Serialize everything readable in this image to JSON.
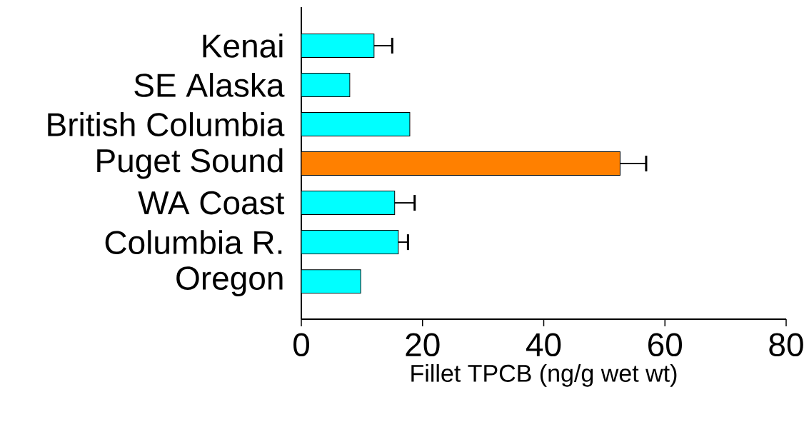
{
  "chart_data": {
    "type": "bar",
    "orientation": "horizontal",
    "xlabel": "Fillet TPCB (ng/g wet wt)",
    "categories": [
      "Kenai",
      "SE Alaska",
      "British Columbia",
      "Puget Sound",
      "WA Coast",
      "Columbia R.",
      "Oregon"
    ],
    "values": [
      12,
      8,
      17.9,
      52.6,
      15.4,
      16,
      9.8
    ],
    "colors": [
      "#00ffff",
      "#00ffff",
      "#00ffff",
      "#ff8000",
      "#00ffff",
      "#00ffff",
      "#00ffff"
    ],
    "errors": [
      [
        12,
        15
      ],
      null,
      null,
      [
        52.6,
        56.9
      ],
      [
        15.4,
        18.7
      ],
      [
        16,
        17.6
      ],
      null
    ],
    "xlim": [
      0,
      80
    ],
    "xticks": [
      0,
      20,
      40,
      60,
      80
    ]
  }
}
